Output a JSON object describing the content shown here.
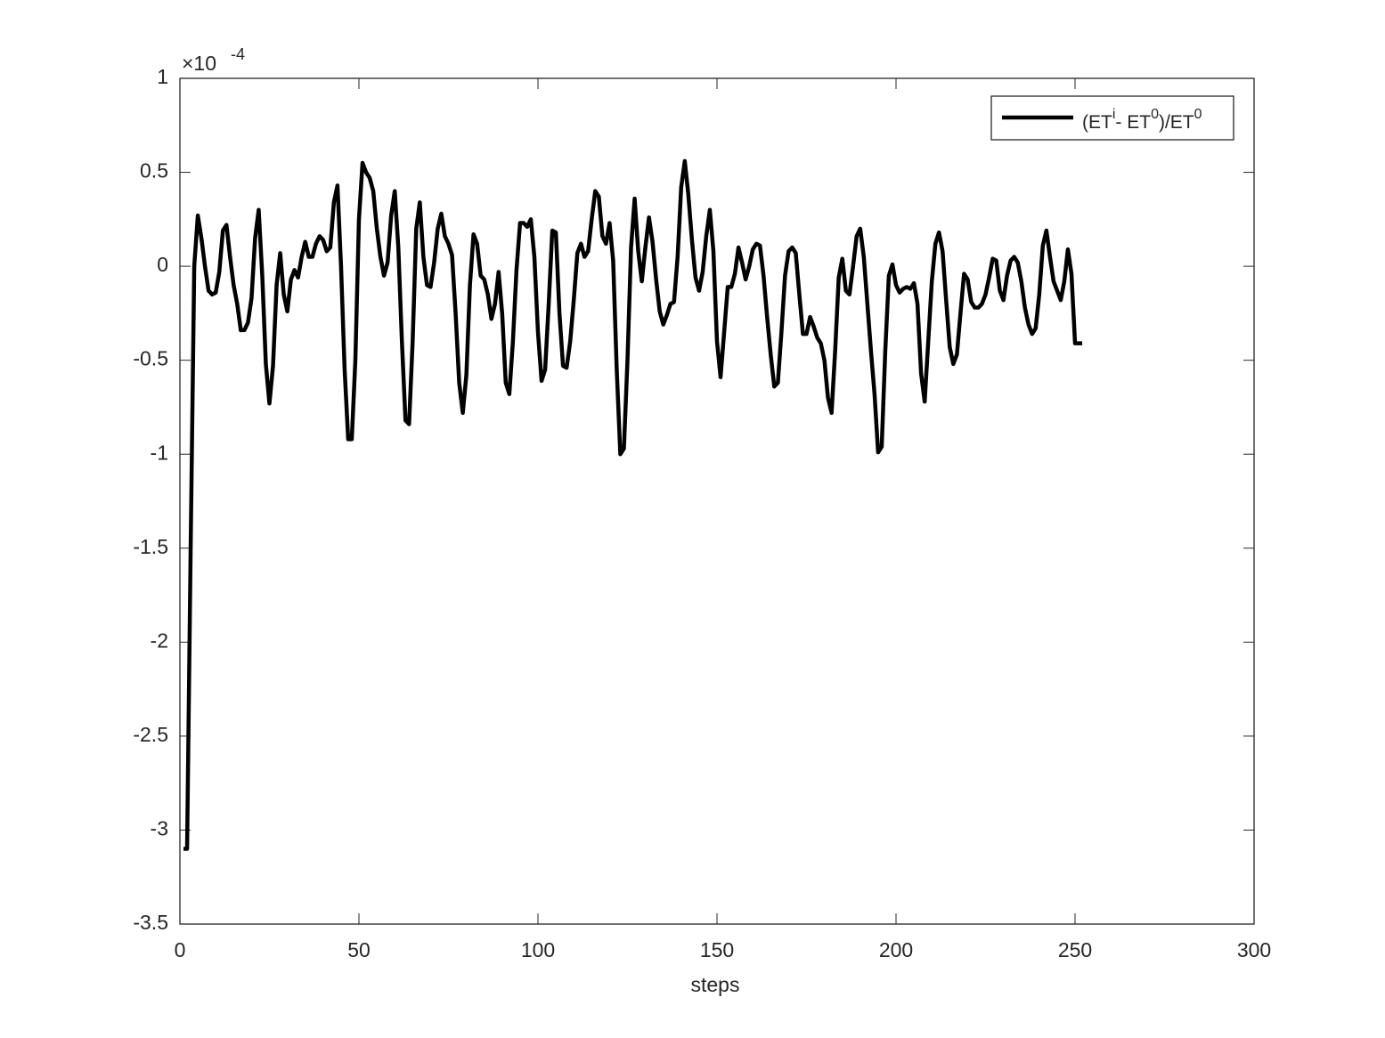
{
  "chart_data": {
    "type": "line",
    "xlabel": "steps",
    "y_multiplier": {
      "base": "×10",
      "exponent": "-4"
    },
    "x": [
      1,
      2,
      3,
      4,
      5,
      6,
      7,
      8,
      9,
      10,
      11,
      12,
      13,
      14,
      15,
      16,
      17,
      18,
      19,
      20,
      21,
      22,
      23,
      24,
      25,
      26,
      27,
      28,
      29,
      30,
      31,
      32,
      33,
      34,
      35,
      36,
      37,
      38,
      39,
      40,
      41,
      42,
      43,
      44,
      45,
      46,
      47,
      48,
      49,
      50,
      51,
      52,
      53,
      54,
      55,
      56,
      57,
      58,
      59,
      60,
      61,
      62,
      63,
      64,
      65,
      66,
      67,
      68,
      69,
      70,
      71,
      72,
      73,
      74,
      75,
      76,
      77,
      78,
      79,
      80,
      81,
      82,
      83,
      84,
      85,
      86,
      87,
      88,
      89,
      90,
      91,
      92,
      93,
      94,
      95,
      96,
      97,
      98,
      99,
      100,
      101,
      102,
      103,
      104,
      105,
      106,
      107,
      108,
      109,
      110,
      111,
      112,
      113,
      114,
      115,
      116,
      117,
      118,
      119,
      120,
      121,
      122,
      123,
      124,
      125,
      126,
      127,
      128,
      129,
      130,
      131,
      132,
      133,
      134,
      135,
      136,
      137,
      138,
      139,
      140,
      141,
      142,
      143,
      144,
      145,
      146,
      147,
      148,
      149,
      150,
      151,
      152,
      153,
      154,
      155,
      156,
      157,
      158,
      159,
      160,
      161,
      162,
      163,
      164,
      165,
      166,
      167,
      168,
      169,
      170,
      171,
      172,
      173,
      174,
      175,
      176,
      177,
      178,
      179,
      180,
      181,
      182,
      183,
      184,
      185,
      186,
      187,
      188,
      189,
      190,
      191,
      192,
      193,
      194,
      195,
      196,
      197,
      198,
      199,
      200,
      201,
      202,
      203,
      204,
      205,
      206,
      207,
      208,
      209,
      210,
      211,
      212,
      213,
      214,
      215,
      216,
      217,
      218,
      219,
      220,
      221,
      222,
      223,
      224,
      225,
      226,
      227,
      228,
      229,
      230,
      231,
      232,
      233,
      234,
      235,
      236,
      237,
      238,
      239,
      240,
      241,
      242,
      243,
      244,
      245,
      246,
      247,
      248,
      249,
      250,
      251,
      252
    ],
    "series": [
      {
        "name": "(ET^i- ET^0)/ET^0",
        "color": "#000000",
        "values": [
          -3.1,
          -3.1,
          -1.5,
          0.0,
          0.27,
          0.15,
          0.0,
          -0.13,
          -0.15,
          -0.14,
          -0.03,
          0.19,
          0.22,
          0.05,
          -0.1,
          -0.2,
          -0.34,
          -0.34,
          -0.3,
          -0.17,
          0.15,
          0.3,
          -0.05,
          -0.52,
          -0.73,
          -0.53,
          -0.1,
          0.07,
          -0.15,
          -0.24,
          -0.07,
          -0.02,
          -0.06,
          0.05,
          0.13,
          0.05,
          0.05,
          0.12,
          0.16,
          0.14,
          0.08,
          0.1,
          0.34,
          0.43,
          0.0,
          -0.55,
          -0.92,
          -0.92,
          -0.5,
          0.25,
          0.55,
          0.5,
          0.47,
          0.4,
          0.2,
          0.05,
          -0.05,
          0.02,
          0.27,
          0.4,
          0.1,
          -0.4,
          -0.82,
          -0.84,
          -0.4,
          0.2,
          0.34,
          0.05,
          -0.1,
          -0.11,
          0.02,
          0.2,
          0.28,
          0.16,
          0.12,
          0.06,
          -0.25,
          -0.62,
          -0.78,
          -0.58,
          -0.1,
          0.17,
          0.12,
          -0.05,
          -0.07,
          -0.15,
          -0.28,
          -0.2,
          -0.03,
          -0.25,
          -0.62,
          -0.68,
          -0.4,
          -0.02,
          0.23,
          0.23,
          0.21,
          0.25,
          0.05,
          -0.35,
          -0.61,
          -0.55,
          -0.2,
          0.19,
          0.18,
          -0.25,
          -0.53,
          -0.54,
          -0.4,
          -0.18,
          0.07,
          0.12,
          0.05,
          0.08,
          0.25,
          0.4,
          0.37,
          0.16,
          0.12,
          0.23,
          0.03,
          -0.55,
          -1.0,
          -0.97,
          -0.5,
          0.1,
          0.36,
          0.08,
          -0.08,
          0.1,
          0.26,
          0.13,
          -0.07,
          -0.24,
          -0.31,
          -0.26,
          -0.2,
          -0.19,
          0.05,
          0.42,
          0.56,
          0.38,
          0.14,
          -0.06,
          -0.13,
          -0.03,
          0.16,
          0.3,
          0.08,
          -0.4,
          -0.59,
          -0.35,
          -0.11,
          -0.11,
          -0.04,
          0.1,
          0.02,
          -0.07,
          0.0,
          0.09,
          0.12,
          0.11,
          -0.05,
          -0.27,
          -0.47,
          -0.64,
          -0.62,
          -0.35,
          -0.05,
          0.08,
          0.1,
          0.07,
          -0.15,
          -0.36,
          -0.36,
          -0.27,
          -0.32,
          -0.38,
          -0.41,
          -0.5,
          -0.7,
          -0.78,
          -0.45,
          -0.06,
          0.04,
          -0.13,
          -0.15,
          0.0,
          0.16,
          0.2,
          0.05,
          -0.2,
          -0.45,
          -0.68,
          -0.99,
          -0.96,
          -0.45,
          -0.05,
          0.01,
          -0.1,
          -0.14,
          -0.12,
          -0.11,
          -0.12,
          -0.09,
          -0.2,
          -0.57,
          -0.72,
          -0.4,
          -0.08,
          0.12,
          0.18,
          0.08,
          -0.18,
          -0.43,
          -0.52,
          -0.47,
          -0.25,
          -0.04,
          -0.07,
          -0.19,
          -0.22,
          -0.22,
          -0.2,
          -0.15,
          -0.06,
          0.04,
          0.03,
          -0.13,
          -0.18,
          -0.05,
          0.03,
          0.05,
          0.02,
          -0.08,
          -0.22,
          -0.31,
          -0.36,
          -0.33,
          -0.15,
          0.11,
          0.19,
          0.05,
          -0.08,
          -0.13,
          -0.18,
          -0.08,
          0.09,
          -0.04,
          -0.41,
          -0.41,
          -0.41
        ]
      }
    ],
    "xlim": [
      0,
      300
    ],
    "xticks": [
      0,
      50,
      100,
      150,
      200,
      250,
      300
    ],
    "ylim": [
      -3.5,
      1
    ],
    "yticks": [
      -3.5,
      -3,
      -2.5,
      -2,
      -1.5,
      -1,
      -0.5,
      0,
      0.5,
      1
    ],
    "legend": "upper right",
    "grid": false
  }
}
